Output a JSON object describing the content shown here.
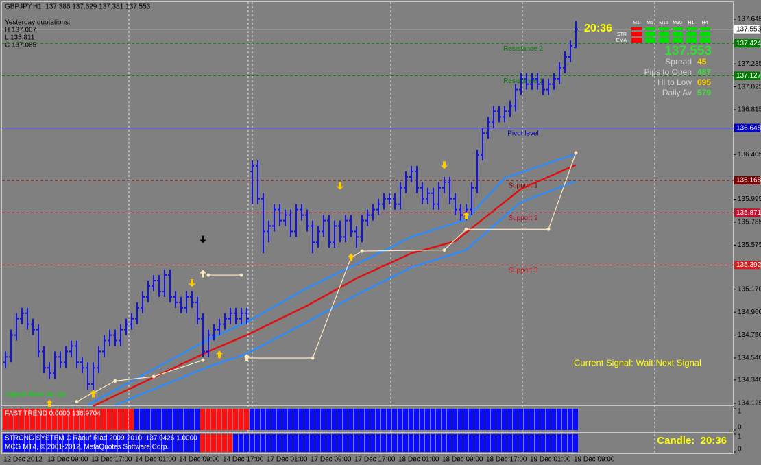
{
  "header": {
    "symbol_line": "GBPJPY,H1  137.386 137.629 137.381 137.553",
    "yesterday_title": "Yesterday quotations:",
    "yesterday_lines": [
      "H 137.067",
      "L 135.811",
      "C 137.065"
    ]
  },
  "chart": {
    "type": "ohlc",
    "bar_color": "#1010f0",
    "ylim": [
      134.125,
      137.645
    ],
    "yticks": [
      137.645,
      137.235,
      137.025,
      136.815,
      136.405,
      135.995,
      135.785,
      135.575,
      {
        "value": 135.17,
        "label": "135.170"
      },
      {
        "value": 134.96,
        "label": "134.960"
      },
      {
        "value": 134.75,
        "label": "134.750"
      },
      {
        "value": 134.54,
        "label": "134.540"
      },
      {
        "value": 134.34,
        "label": "134.340"
      },
      134.125
    ],
    "time_labels": [
      "12 Dec 2012",
      "13 Dec 09:00",
      "13 Dec 17:00",
      "14 Dec 01:00",
      "14 Dec 09:00",
      "14 Dec 17:00",
      "17 Dec 01:00",
      "17 Dec 09:00",
      "17 Dec 17:00",
      "18 Dec 01:00",
      "18 Dec 09:00",
      "18 Dec 17:00",
      "19 Dec 01:00",
      "19 Dec 09:00"
    ],
    "candles": [
      [
        134.5,
        134.6,
        134.45,
        134.55
      ],
      [
        134.55,
        134.8,
        134.5,
        134.75
      ],
      [
        134.75,
        134.95,
        134.7,
        134.9
      ],
      [
        134.9,
        135.0,
        134.85,
        134.95
      ],
      [
        134.95,
        135.0,
        134.8,
        134.85
      ],
      [
        134.85,
        134.9,
        134.75,
        134.8
      ],
      [
        134.8,
        134.85,
        134.55,
        134.6
      ],
      [
        134.6,
        134.65,
        134.4,
        134.45
      ],
      [
        134.45,
        134.5,
        134.35,
        134.4
      ],
      [
        134.4,
        134.6,
        134.35,
        134.55
      ],
      [
        134.55,
        134.6,
        134.45,
        134.5
      ],
      [
        134.5,
        134.65,
        134.45,
        134.6
      ],
      [
        134.6,
        134.7,
        134.55,
        134.65
      ],
      [
        134.65,
        134.7,
        134.45,
        134.5
      ],
      [
        134.5,
        134.55,
        134.4,
        134.45
      ],
      [
        134.45,
        134.5,
        134.25,
        134.3
      ],
      [
        134.3,
        134.5,
        134.25,
        134.45
      ],
      [
        134.45,
        134.65,
        134.4,
        134.6
      ],
      [
        134.6,
        134.75,
        134.55,
        134.7
      ],
      [
        134.7,
        134.8,
        134.65,
        134.75
      ],
      [
        134.75,
        134.8,
        134.65,
        134.7
      ],
      [
        134.7,
        134.85,
        134.65,
        134.8
      ],
      [
        134.8,
        134.9,
        134.75,
        134.85
      ],
      [
        134.85,
        134.95,
        134.8,
        134.9
      ],
      [
        134.9,
        135.05,
        134.85,
        135.0
      ],
      [
        135.0,
        135.15,
        134.95,
        135.1
      ],
      [
        135.1,
        135.25,
        135.05,
        135.2
      ],
      [
        135.2,
        135.3,
        135.15,
        135.25
      ],
      [
        135.25,
        135.3,
        135.1,
        135.15
      ],
      [
        135.15,
        135.35,
        135.1,
        135.3
      ],
      [
        135.3,
        135.35,
        135.05,
        135.1
      ],
      [
        135.1,
        135.15,
        135.0,
        135.05
      ],
      [
        135.05,
        135.1,
        134.95,
        135.0
      ],
      [
        135.0,
        135.15,
        134.95,
        135.1
      ],
      [
        135.1,
        135.15,
        135.0,
        135.05
      ],
      [
        135.05,
        135.1,
        134.85,
        134.9
      ],
      [
        134.9,
        134.95,
        134.55,
        134.6
      ],
      [
        134.6,
        134.8,
        134.55,
        134.75
      ],
      [
        134.75,
        134.85,
        134.7,
        134.8
      ],
      [
        134.8,
        134.9,
        134.75,
        134.85
      ],
      [
        134.85,
        134.95,
        134.8,
        134.9
      ],
      [
        134.9,
        135.0,
        134.85,
        134.95
      ],
      [
        134.95,
        135.0,
        134.85,
        134.9
      ],
      [
        134.9,
        135.0,
        134.85,
        134.95
      ],
      [
        134.95,
        135.0,
        134.85,
        134.9
      ],
      [
        136.25,
        136.35,
        135.95,
        136.3
      ],
      [
        136.3,
        136.35,
        135.95,
        136.0
      ],
      [
        136.0,
        136.05,
        135.5,
        135.7
      ],
      [
        135.7,
        135.8,
        135.6,
        135.75
      ],
      [
        135.75,
        135.95,
        135.7,
        135.9
      ],
      [
        135.9,
        135.95,
        135.75,
        135.8
      ],
      [
        135.8,
        135.9,
        135.75,
        135.85
      ],
      [
        135.85,
        135.9,
        135.65,
        135.7
      ],
      [
        135.7,
        135.95,
        135.65,
        135.9
      ],
      [
        135.9,
        135.95,
        135.8,
        135.85
      ],
      [
        135.85,
        135.9,
        135.7,
        135.75
      ],
      [
        135.75,
        135.8,
        135.5,
        135.6
      ],
      [
        135.6,
        135.75,
        135.55,
        135.7
      ],
      [
        135.7,
        135.85,
        135.65,
        135.8
      ],
      [
        135.8,
        135.85,
        135.55,
        135.6
      ],
      [
        135.6,
        135.8,
        135.55,
        135.75
      ],
      [
        135.75,
        135.8,
        135.6,
        135.65
      ],
      [
        135.65,
        135.85,
        135.6,
        135.8
      ],
      [
        135.8,
        135.85,
        135.65,
        135.7
      ],
      [
        135.7,
        135.75,
        135.55,
        135.65
      ],
      [
        135.65,
        135.85,
        135.6,
        135.8
      ],
      [
        135.8,
        135.9,
        135.75,
        135.85
      ],
      [
        135.85,
        135.95,
        135.8,
        135.9
      ],
      [
        135.9,
        136.0,
        135.85,
        135.95
      ],
      [
        135.95,
        136.05,
        135.9,
        136.0
      ],
      [
        136.0,
        136.05,
        135.95,
        136.0
      ],
      [
        136.0,
        136.05,
        135.9,
        135.95
      ],
      [
        135.95,
        136.15,
        135.9,
        136.1
      ],
      [
        136.1,
        136.25,
        136.05,
        136.2
      ],
      [
        136.2,
        136.3,
        136.15,
        136.25
      ],
      [
        136.25,
        136.3,
        136.05,
        136.1
      ],
      [
        136.1,
        136.15,
        135.95,
        136.0
      ],
      [
        136.0,
        136.1,
        135.95,
        136.05
      ],
      [
        136.05,
        136.1,
        135.9,
        135.95
      ],
      [
        135.95,
        136.15,
        135.9,
        136.1
      ],
      [
        136.1,
        136.2,
        136.05,
        136.15
      ],
      [
        136.15,
        136.2,
        135.95,
        136.0
      ],
      [
        136.0,
        136.05,
        135.85,
        135.9
      ],
      [
        135.9,
        135.95,
        135.8,
        135.85
      ],
      [
        135.85,
        135.95,
        135.8,
        135.9
      ],
      [
        135.9,
        136.15,
        135.85,
        136.1
      ],
      [
        136.1,
        136.45,
        136.05,
        136.4
      ],
      [
        136.4,
        136.65,
        136.35,
        136.6
      ],
      [
        136.6,
        136.75,
        136.55,
        136.7
      ],
      [
        136.7,
        136.85,
        136.65,
        136.8
      ],
      [
        136.8,
        136.85,
        136.7,
        136.75
      ],
      [
        136.75,
        136.85,
        136.7,
        136.8
      ],
      [
        136.8,
        136.9,
        136.75,
        136.85
      ],
      [
        136.85,
        137.05,
        136.8,
        137.0
      ],
      [
        137.0,
        137.15,
        136.95,
        137.1
      ],
      [
        137.1,
        137.15,
        137.0,
        137.05
      ],
      [
        137.05,
        137.15,
        137.0,
        137.1
      ],
      [
        137.1,
        137.15,
        137.0,
        137.05
      ],
      [
        137.05,
        137.1,
        136.95,
        137.0
      ],
      [
        137.0,
        137.1,
        136.95,
        137.05
      ],
      [
        137.05,
        137.15,
        137.0,
        137.1
      ],
      [
        137.1,
        137.25,
        137.05,
        137.2
      ],
      [
        137.2,
        137.35,
        137.15,
        137.3
      ],
      [
        137.3,
        137.45,
        137.25,
        137.4
      ],
      [
        137.386,
        137.629,
        137.381,
        137.553
      ]
    ],
    "current_price": 137.553,
    "levels": [
      {
        "label": "Resistance 2",
        "price": 137.424,
        "color": "#007a00",
        "dashed": true
      },
      {
        "label": "Resistance 1",
        "price": 137.127,
        "color": "#007a00",
        "dashed": true
      },
      {
        "label": "Pivot level",
        "price": 136.648,
        "color": "#0000c8",
        "dashed": false
      },
      {
        "label": "Support 1",
        "price": 136.168,
        "color": "#800000",
        "dashed": true
      },
      {
        "label": "Support 2",
        "price": 135.871,
        "color": "#c01030",
        "dashed": true
      },
      {
        "label": "Support 3",
        "price": 135.392,
        "color": "#d02020",
        "dashed": true
      }
    ],
    "lines": [
      {
        "color": "#2a8cff",
        "x": [
          15,
          37,
          44,
          55,
          64,
          74,
          84,
          91,
          104
        ],
        "values": [
          134.11,
          134.71,
          134.87,
          135.18,
          135.4,
          135.65,
          135.81,
          136.19,
          136.41
        ]
      },
      {
        "color": "#2a8cff",
        "x": [
          20,
          37,
          44,
          55,
          64,
          74,
          84,
          94,
          104
        ],
        "values": [
          134.11,
          134.46,
          134.58,
          134.87,
          135.12,
          135.37,
          135.53,
          135.97,
          136.16
        ]
      },
      {
        "color": "#e01010",
        "x": [
          16,
          37,
          44,
          55,
          64,
          74,
          82,
          87,
          94,
          104
        ],
        "values": [
          134.1,
          134.6,
          134.75,
          135.02,
          135.27,
          135.5,
          135.61,
          135.81,
          136.09,
          136.31
        ]
      }
    ],
    "trail": {
      "color": "#ffe8c0",
      "x": [
        13,
        20,
        27,
        36,
        36,
        37,
        43,
        43,
        44,
        56,
        63,
        65,
        80,
        84,
        99,
        104
      ],
      "values": [
        134.14,
        134.33,
        134.37,
        134.52,
        null,
        135.3,
        135.3,
        null,
        134.54,
        134.54,
        135.46,
        135.52,
        135.53,
        135.72,
        135.72,
        136.42
      ]
    },
    "arrows": [
      {
        "direction": "up",
        "color": "#ffcc00",
        "bar": 8,
        "price": 134.12
      },
      {
        "direction": "up",
        "color": "#ffcc00",
        "bar": 16,
        "price": 134.21
      },
      {
        "direction": "down",
        "color": "#ffcc00",
        "bar": 34,
        "price": 135.23
      },
      {
        "direction": "down",
        "color": "#000000",
        "bar": 36,
        "price": 135.63
      },
      {
        "direction": "up",
        "color": "#ffe8c0",
        "bar": 36,
        "price": 135.31
      },
      {
        "direction": "up",
        "color": "#ffcc00",
        "bar": 39,
        "price": 134.57
      },
      {
        "direction": "up",
        "color": "#ffe8c0",
        "bar": 44,
        "price": 134.54
      },
      {
        "direction": "down",
        "color": "#ffcc00",
        "bar": 61,
        "price": 136.12
      },
      {
        "direction": "up",
        "color": "#ffcc00",
        "bar": 63,
        "price": 135.46
      },
      {
        "direction": "down",
        "color": "#ffcc00",
        "bar": 80,
        "price": 136.31
      },
      {
        "direction": "up",
        "color": "#ffcc00",
        "bar": 84,
        "price": 135.84
      }
    ],
    "current_signal": "Current Signal: Wait Next Signal",
    "signal_bars_note": "Signal Bars by cjs"
  },
  "info": {
    "clock": "20:36",
    "price": 137.553,
    "columns": [
      "M1",
      "M5",
      "M15",
      "M30",
      "H1",
      "H4"
    ],
    "rows": [
      {
        "label": "STR",
        "colors": [
          "#ff0000",
          "#00dd00",
          "#00dd00",
          "#00dd00",
          "#00dd00",
          "#00dd00"
        ]
      },
      {
        "label": "EMA",
        "colors": [
          "#ff0000",
          "#00dd00",
          "#00dd00",
          "#00dd00",
          "#00dd00",
          "#00dd00"
        ]
      }
    ],
    "stats": [
      {
        "label": "Spread",
        "value": 45,
        "color": "#ffd700"
      },
      {
        "label": "Pips to Open",
        "value": 487,
        "color": "#40e040"
      },
      {
        "label": "Hi to Low",
        "value": 695,
        "color": "#ffd700"
      },
      {
        "label": "Daily Av",
        "value": 579,
        "color": "#40e040"
      }
    ]
  },
  "panels": [
    {
      "title": "FAST TREND 0.0000 136.9704",
      "ylim": [
        0,
        1
      ],
      "yticks": [
        1,
        0
      ],
      "segments": [
        {
          "from": 0,
          "to": 23,
          "color": "#ff1010"
        },
        {
          "from": 24,
          "to": 35,
          "color": "#0a0aff"
        },
        {
          "from": 36,
          "to": 44,
          "color": "#ff1010"
        },
        {
          "from": 45,
          "to": 104,
          "color": "#0a0aff"
        }
      ]
    },
    {
      "title": "STRONG SYSTEM C Raouf Riad 2009-2010  137.0426 1.0000",
      "ylim": [
        0,
        1
      ],
      "yticks": [
        1,
        0
      ],
      "segments": [
        {
          "from": 0,
          "to": 35,
          "color": "#0a0aff"
        },
        {
          "from": 36,
          "to": 41,
          "color": "#ff1010"
        },
        {
          "from": 42,
          "to": 104,
          "color": "#0a0aff"
        }
      ],
      "footer": "MCG MT4, © 2001-2012, MetaQuotes Software Corp.",
      "candle": "Candle:  20:36"
    }
  ]
}
